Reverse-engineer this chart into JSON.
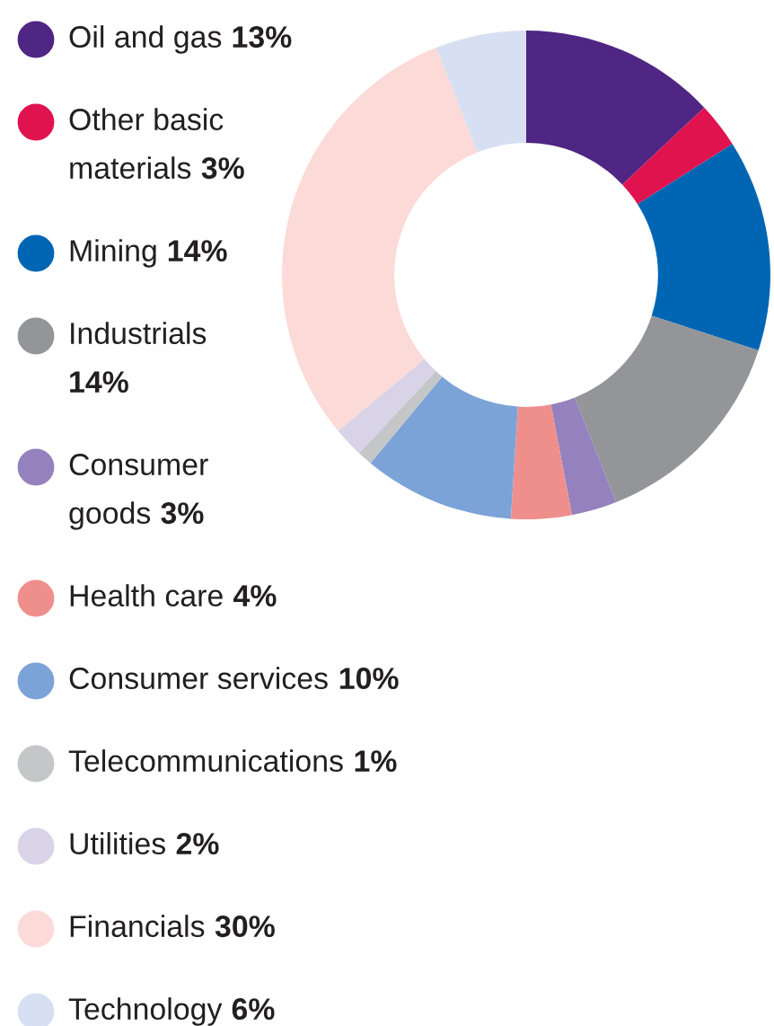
{
  "chart_data": {
    "type": "donut",
    "legend": "left",
    "categories": [
      "Oil and gas",
      "Other basic\nmaterials",
      "Mining",
      "Industrials",
      "Consumer\ngoods",
      "Health care",
      "Consumer services",
      "Telecommunications",
      "Utilities",
      "Financials",
      "Technology"
    ],
    "values": [
      13,
      3,
      14,
      14,
      3,
      4,
      10,
      1,
      2,
      30,
      6
    ],
    "value_labels": [
      "13%",
      "3%",
      "14%",
      "14%",
      "3%",
      "4%",
      "10%",
      "1%",
      "2%",
      "30%",
      "6%"
    ],
    "colors": [
      "#4f2683",
      "#e0134f",
      "#0066b3",
      "#939598",
      "#9581be",
      "#ef8f8c",
      "#7ba3d8",
      "#c5c6c8",
      "#d9d3e8",
      "#fbdad8",
      "#d7e0f2"
    ]
  }
}
